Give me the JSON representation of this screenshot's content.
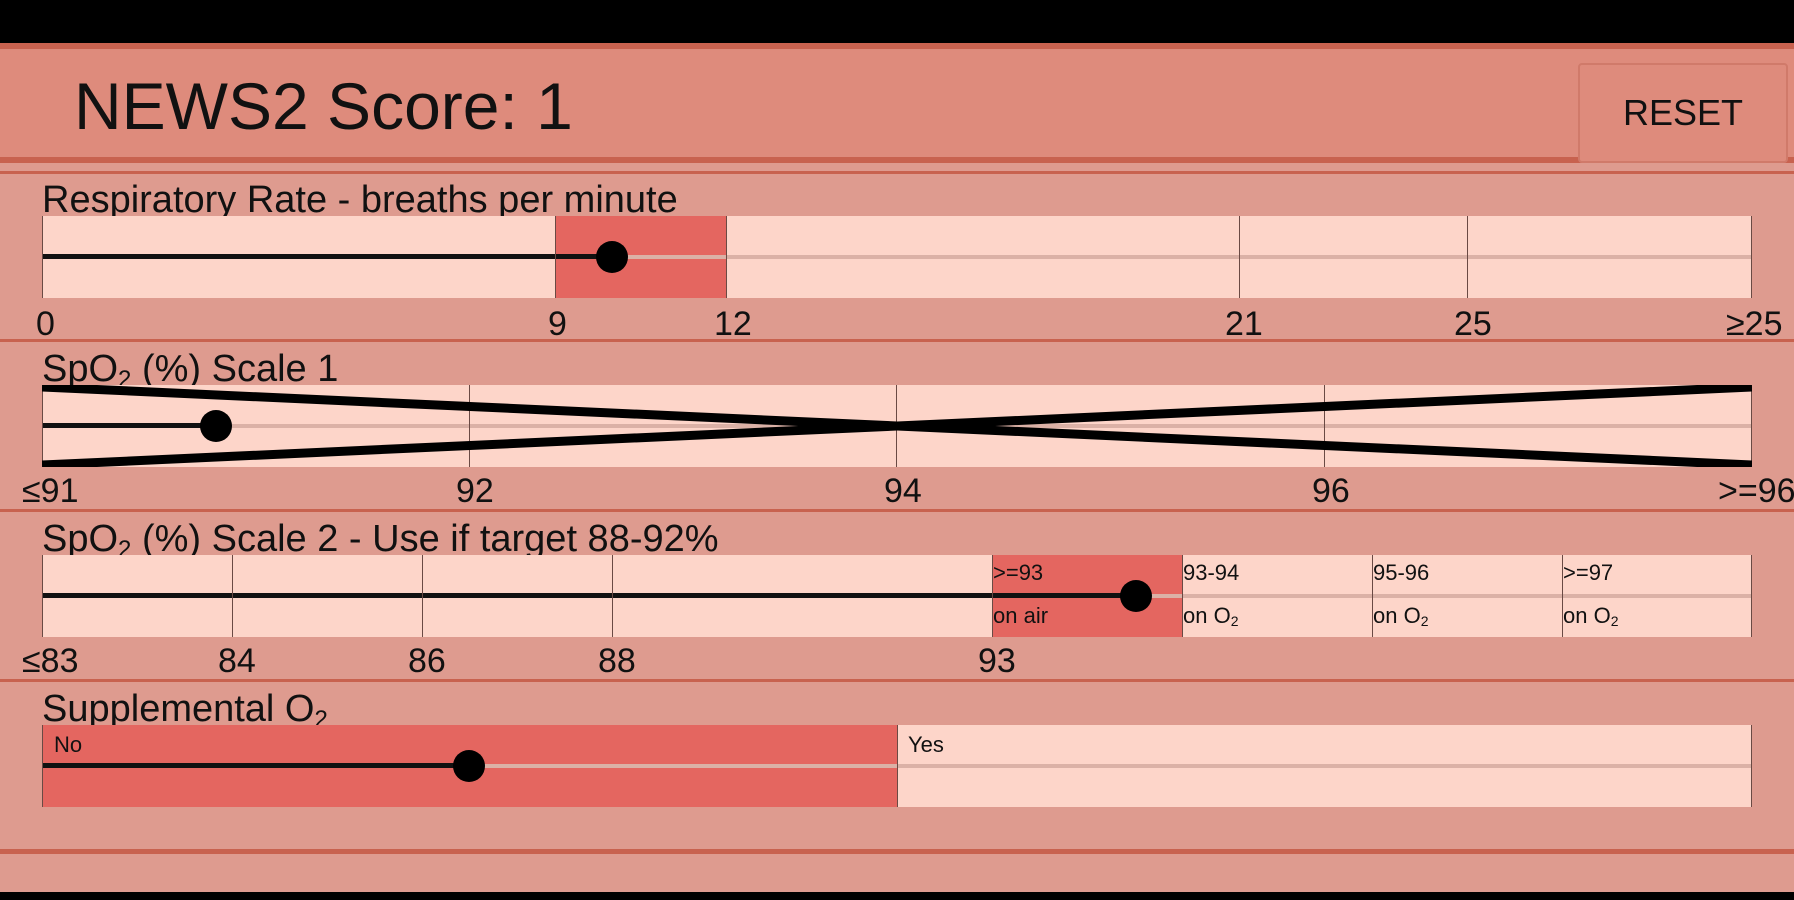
{
  "header": {
    "title": "NEWS2 Score: 1",
    "reset_label": "RESET"
  },
  "respiratory": {
    "label": "Respiratory Rate - breaths per minute",
    "ticks": [
      "0",
      "9",
      "12",
      "21",
      "25",
      "≥25"
    ],
    "value_fraction": 0.333
  },
  "spo2_scale1": {
    "label_pre": "SpO",
    "label_sub": "2",
    "label_post": " (%) Scale 1",
    "ticks": [
      "≤91",
      "92",
      "94",
      "96",
      ">=96"
    ],
    "value_fraction": 0.102,
    "disabled": true
  },
  "spo2_scale2": {
    "label_pre": "SpO",
    "label_sub": "2",
    "label_post": " (%) Scale 2 - Use if target 88-92%",
    "ticks": [
      "≤83",
      "84",
      "86",
      "88",
      "93"
    ],
    "segments": [
      {
        "top": ">=93",
        "bottom": "on air"
      },
      {
        "top": "93-94",
        "bottom_pre": "on O",
        "bottom_sub": "2"
      },
      {
        "top": "95-96",
        "bottom_pre": "on O",
        "bottom_sub": "2"
      },
      {
        "top": ">=97",
        "bottom_pre": "on O",
        "bottom_sub": "2"
      }
    ],
    "value_fraction": 0.64
  },
  "supplemental_o2": {
    "label_pre": "Supplemental O",
    "label_sub": "2",
    "options": [
      "No",
      "Yes"
    ],
    "selected": "No",
    "value_fraction": 0.25
  },
  "colors": {
    "header_bg": "#de8b7c",
    "panel_bg": "#de9b8f",
    "track_bg": "#fdd5c9",
    "active_segment": "#e46660",
    "border": "#c8624f"
  }
}
